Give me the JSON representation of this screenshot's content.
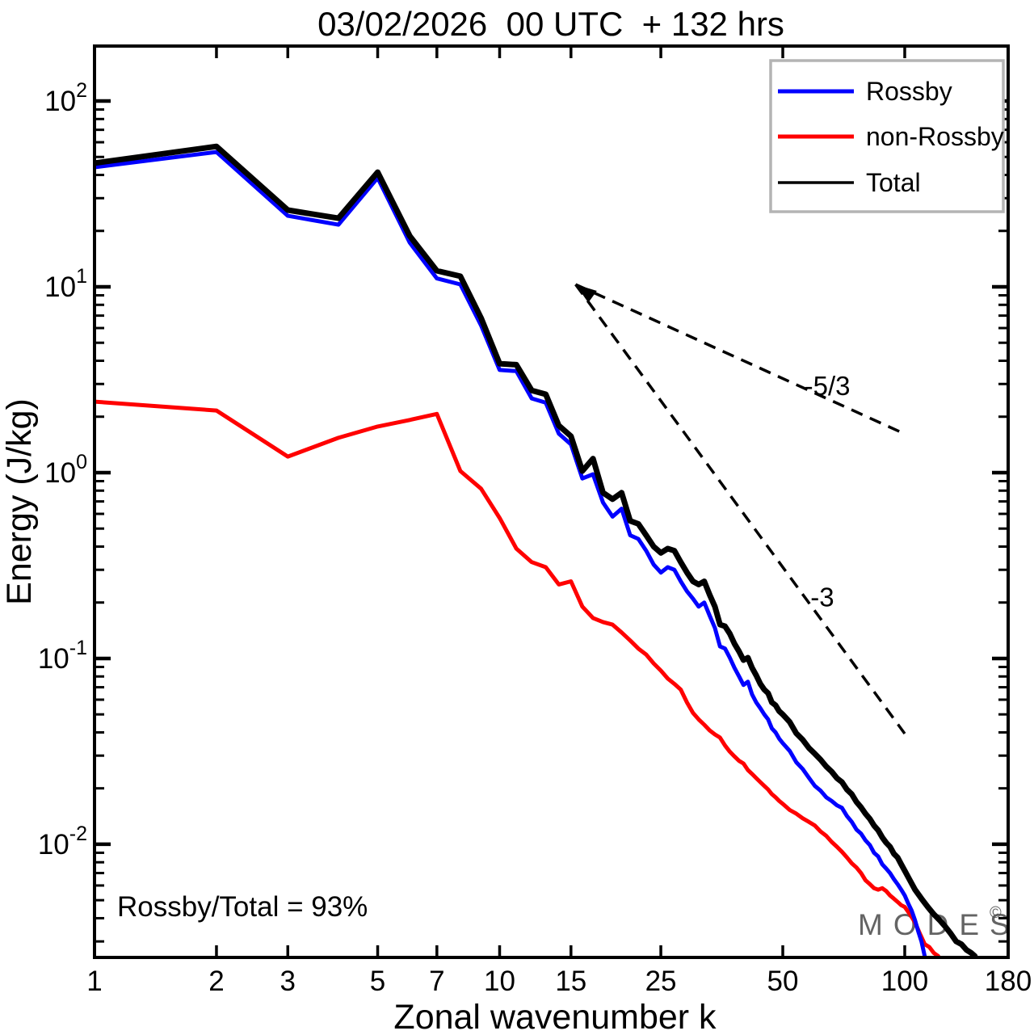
{
  "title": "03/02/2026  00 UTC  + 132 hrs",
  "annotation": {
    "ratio_label": "Rossby/Total = 93%"
  },
  "watermark": {
    "text": "MODES",
    "sup": "©",
    "color": "#4a4a4a"
  },
  "legend": {
    "items": [
      {
        "label": "Rossby",
        "color": "#0000ff"
      },
      {
        "label": "non-Rossby",
        "color": "#ff0000"
      },
      {
        "label": "Total",
        "color": "#000000"
      }
    ]
  },
  "chart_data": {
    "type": "line",
    "title": "03/02/2026  00 UTC  + 132 hrs",
    "xlabel": "Zonal wavenumber k",
    "ylabel": "Energy (J/kg)",
    "x_scale": "log",
    "y_scale": "log",
    "xlim": [
      1,
      180
    ],
    "ylim": [
      0.00246,
      197.6
    ],
    "x_ticks": [
      1,
      2,
      3,
      5,
      7,
      10,
      15,
      25,
      50,
      100,
      180
    ],
    "y_tick_exponents": [
      2,
      1,
      0,
      -1,
      -2
    ],
    "grid": false,
    "legend_position": "top-right",
    "series": [
      {
        "name": "non-Rossby",
        "color": "#ff0000",
        "points": [
          [
            1,
            2.41
          ],
          [
            2,
            2.16
          ],
          [
            3,
            1.22
          ],
          [
            4,
            1.54
          ],
          [
            5,
            1.77
          ],
          [
            6,
            1.92
          ],
          [
            7,
            2.07
          ],
          [
            8,
            1.02
          ],
          [
            9,
            0.82
          ],
          [
            10,
            0.57
          ],
          [
            11,
            0.39
          ],
          [
            12,
            0.33
          ],
          [
            13,
            0.31
          ],
          [
            14,
            0.25
          ],
          [
            15,
            0.26
          ],
          [
            16,
            0.19
          ],
          [
            17,
            0.165
          ],
          [
            18,
            0.157
          ],
          [
            19,
            0.152
          ],
          [
            20,
            0.138
          ],
          [
            21,
            0.125
          ],
          [
            22,
            0.113
          ],
          [
            23,
            0.105
          ],
          [
            24,
            0.094
          ],
          [
            25,
            0.086
          ],
          [
            26,
            0.078
          ],
          [
            27,
            0.073
          ],
          [
            28,
            0.068
          ],
          [
            29,
            0.058
          ],
          [
            30,
            0.051
          ],
          [
            31,
            0.047
          ],
          [
            32,
            0.044
          ],
          [
            33,
            0.041
          ],
          [
            34,
            0.039
          ],
          [
            35,
            0.0375
          ],
          [
            36,
            0.034
          ],
          [
            37,
            0.0315
          ],
          [
            38,
            0.0297
          ],
          [
            39,
            0.0281
          ],
          [
            40,
            0.0272
          ],
          [
            41,
            0.0251
          ],
          [
            42,
            0.0239
          ],
          [
            43,
            0.0227
          ],
          [
            44,
            0.0216
          ],
          [
            45,
            0.0206
          ],
          [
            46,
            0.0197
          ],
          [
            47,
            0.0186
          ],
          [
            48,
            0.0179
          ],
          [
            49,
            0.0171
          ],
          [
            50,
            0.0165
          ],
          [
            52,
            0.0153
          ],
          [
            54,
            0.0146
          ],
          [
            56,
            0.0138
          ],
          [
            58,
            0.0132
          ],
          [
            60,
            0.0126
          ],
          [
            62,
            0.0117
          ],
          [
            64,
            0.0111
          ],
          [
            66,
            0.0103
          ],
          [
            68,
            0.0097
          ],
          [
            70,
            0.0091
          ],
          [
            72,
            0.0085
          ],
          [
            74,
            0.0079
          ],
          [
            76,
            0.0075
          ],
          [
            78,
            0.007
          ],
          [
            80,
            0.0064
          ],
          [
            82,
            0.0061
          ],
          [
            84,
            0.0058
          ],
          [
            86,
            0.0057
          ],
          [
            88,
            0.0058
          ],
          [
            90,
            0.0056
          ],
          [
            92,
            0.0053
          ],
          [
            94,
            0.0051
          ],
          [
            96,
            0.0049
          ],
          [
            98,
            0.0047
          ],
          [
            100,
            0.0046
          ],
          [
            103,
            0.0042
          ],
          [
            106,
            0.0038
          ],
          [
            109,
            0.0033
          ],
          [
            112,
            0.0029
          ],
          [
            115,
            0.0028
          ],
          [
            118,
            0.0026
          ],
          [
            121,
            0.0025
          ]
        ]
      },
      {
        "name": "Rossby",
        "color": "#0000ff",
        "points": [
          [
            1,
            44
          ],
          [
            2,
            53.2
          ],
          [
            3,
            24.1
          ],
          [
            4,
            21.6
          ],
          [
            5,
            38.6
          ],
          [
            6,
            17.3
          ],
          [
            7,
            11.1
          ],
          [
            8,
            10.3
          ],
          [
            9,
            6.2
          ],
          [
            10,
            3.57
          ],
          [
            11,
            3.52
          ],
          [
            12,
            2.51
          ],
          [
            13,
            2.38
          ],
          [
            14,
            1.62
          ],
          [
            15,
            1.42
          ],
          [
            16,
            0.93
          ],
          [
            17,
            0.98
          ],
          [
            18,
            0.69
          ],
          [
            19,
            0.58
          ],
          [
            20,
            0.64
          ],
          [
            21,
            0.46
          ],
          [
            22,
            0.44
          ],
          [
            23,
            0.38
          ],
          [
            24,
            0.32
          ],
          [
            25,
            0.29
          ],
          [
            26,
            0.31
          ],
          [
            27,
            0.3
          ],
          [
            28,
            0.26
          ],
          [
            29,
            0.23
          ],
          [
            30,
            0.21
          ],
          [
            31,
            0.19
          ],
          [
            32,
            0.2
          ],
          [
            33,
            0.17
          ],
          [
            34,
            0.146
          ],
          [
            35,
            0.116
          ],
          [
            36,
            0.113
          ],
          [
            37,
            0.101
          ],
          [
            38,
            0.089
          ],
          [
            39,
            0.08
          ],
          [
            40,
            0.072
          ],
          [
            41,
            0.075
          ],
          [
            42,
            0.064
          ],
          [
            43,
            0.058
          ],
          [
            44,
            0.054
          ],
          [
            45,
            0.05
          ],
          [
            46,
            0.047
          ],
          [
            47,
            0.042
          ],
          [
            48,
            0.04
          ],
          [
            49,
            0.037
          ],
          [
            50,
            0.035
          ],
          [
            52,
            0.0318
          ],
          [
            54,
            0.0276
          ],
          [
            56,
            0.0254
          ],
          [
            58,
            0.0228
          ],
          [
            60,
            0.0206
          ],
          [
            62,
            0.0194
          ],
          [
            64,
            0.0179
          ],
          [
            66,
            0.0171
          ],
          [
            68,
            0.0162
          ],
          [
            70,
            0.0157
          ],
          [
            72,
            0.0142
          ],
          [
            74,
            0.0132
          ],
          [
            76,
            0.012
          ],
          [
            78,
            0.0114
          ],
          [
            80,
            0.0105
          ],
          [
            82,
            0.0099
          ],
          [
            84,
            0.009
          ],
          [
            86,
            0.0086
          ],
          [
            88,
            0.0078
          ],
          [
            90,
            0.0074
          ],
          [
            92,
            0.007
          ],
          [
            94,
            0.0065
          ],
          [
            96,
            0.0061
          ],
          [
            98,
            0.0057
          ],
          [
            100,
            0.0053
          ],
          [
            102,
            0.0048
          ],
          [
            104,
            0.0044
          ],
          [
            106,
            0.0039
          ],
          [
            108,
            0.0034
          ],
          [
            110,
            0.003
          ],
          [
            112,
            0.0025
          ]
        ]
      },
      {
        "name": "Total",
        "color": "#000000",
        "points": [
          [
            1,
            46.3
          ],
          [
            2,
            57
          ],
          [
            3,
            25.9
          ],
          [
            4,
            23.4
          ],
          [
            5,
            41.4
          ],
          [
            6,
            18.8
          ],
          [
            7,
            12.2
          ],
          [
            8,
            11.4
          ],
          [
            9,
            6.8
          ],
          [
            10,
            3.86
          ],
          [
            11,
            3.81
          ],
          [
            12,
            2.77
          ],
          [
            13,
            2.64
          ],
          [
            14,
            1.79
          ],
          [
            15,
            1.57
          ],
          [
            16,
            1.02
          ],
          [
            17,
            1.19
          ],
          [
            18,
            0.78
          ],
          [
            19,
            0.72
          ],
          [
            20,
            0.78
          ],
          [
            21,
            0.55
          ],
          [
            22,
            0.53
          ],
          [
            23,
            0.46
          ],
          [
            24,
            0.4
          ],
          [
            25,
            0.37
          ],
          [
            26,
            0.39
          ],
          [
            27,
            0.38
          ],
          [
            28,
            0.33
          ],
          [
            29,
            0.29
          ],
          [
            30,
            0.26
          ],
          [
            31,
            0.25
          ],
          [
            32,
            0.26
          ],
          [
            33,
            0.22
          ],
          [
            34,
            0.19
          ],
          [
            35,
            0.152
          ],
          [
            36,
            0.149
          ],
          [
            37,
            0.136
          ],
          [
            38,
            0.12
          ],
          [
            39,
            0.109
          ],
          [
            40,
            0.098
          ],
          [
            41,
            0.101
          ],
          [
            42,
            0.089
          ],
          [
            43,
            0.081
          ],
          [
            44,
            0.073
          ],
          [
            45,
            0.068
          ],
          [
            46,
            0.065
          ],
          [
            47,
            0.058
          ],
          [
            48,
            0.056
          ],
          [
            49,
            0.052
          ],
          [
            50,
            0.05
          ],
          [
            52,
            0.0455
          ],
          [
            54,
            0.0395
          ],
          [
            56,
            0.0365
          ],
          [
            58,
            0.033
          ],
          [
            60,
            0.0307
          ],
          [
            62,
            0.0285
          ],
          [
            64,
            0.0262
          ],
          [
            66,
            0.0246
          ],
          [
            68,
            0.0227
          ],
          [
            70,
            0.0216
          ],
          [
            72,
            0.0197
          ],
          [
            74,
            0.0186
          ],
          [
            76,
            0.0169
          ],
          [
            78,
            0.0158
          ],
          [
            80,
            0.0146
          ],
          [
            82,
            0.0137
          ],
          [
            84,
            0.0126
          ],
          [
            86,
            0.0119
          ],
          [
            88,
            0.0109
          ],
          [
            90,
            0.0102
          ],
          [
            92,
            0.0097
          ],
          [
            94,
            0.0089
          ],
          [
            96,
            0.0085
          ],
          [
            98,
            0.0078
          ],
          [
            100,
            0.0072
          ],
          [
            103,
            0.0064
          ],
          [
            106,
            0.0057
          ],
          [
            110,
            0.0051
          ],
          [
            114,
            0.0046
          ],
          [
            118,
            0.0042
          ],
          [
            122,
            0.0039
          ],
          [
            126,
            0.0036
          ],
          [
            130,
            0.0033
          ],
          [
            134,
            0.003
          ],
          [
            138,
            0.0029
          ],
          [
            142,
            0.0027
          ],
          [
            146,
            0.0026
          ],
          [
            149,
            0.0025
          ]
        ]
      }
    ],
    "reference_lines": [
      {
        "label": "-5/3",
        "from": [
          15.4,
          10.3
        ],
        "to": [
          101,
          1.6
        ],
        "label_at": [
          56.5,
          2.95
        ],
        "arrow_at_start": true
      },
      {
        "label": "-3",
        "from": [
          15.4,
          10.3
        ],
        "to": [
          100,
          0.0394
        ],
        "label_at": [
          58.5,
          0.215
        ],
        "arrow_at_start": false
      }
    ]
  }
}
